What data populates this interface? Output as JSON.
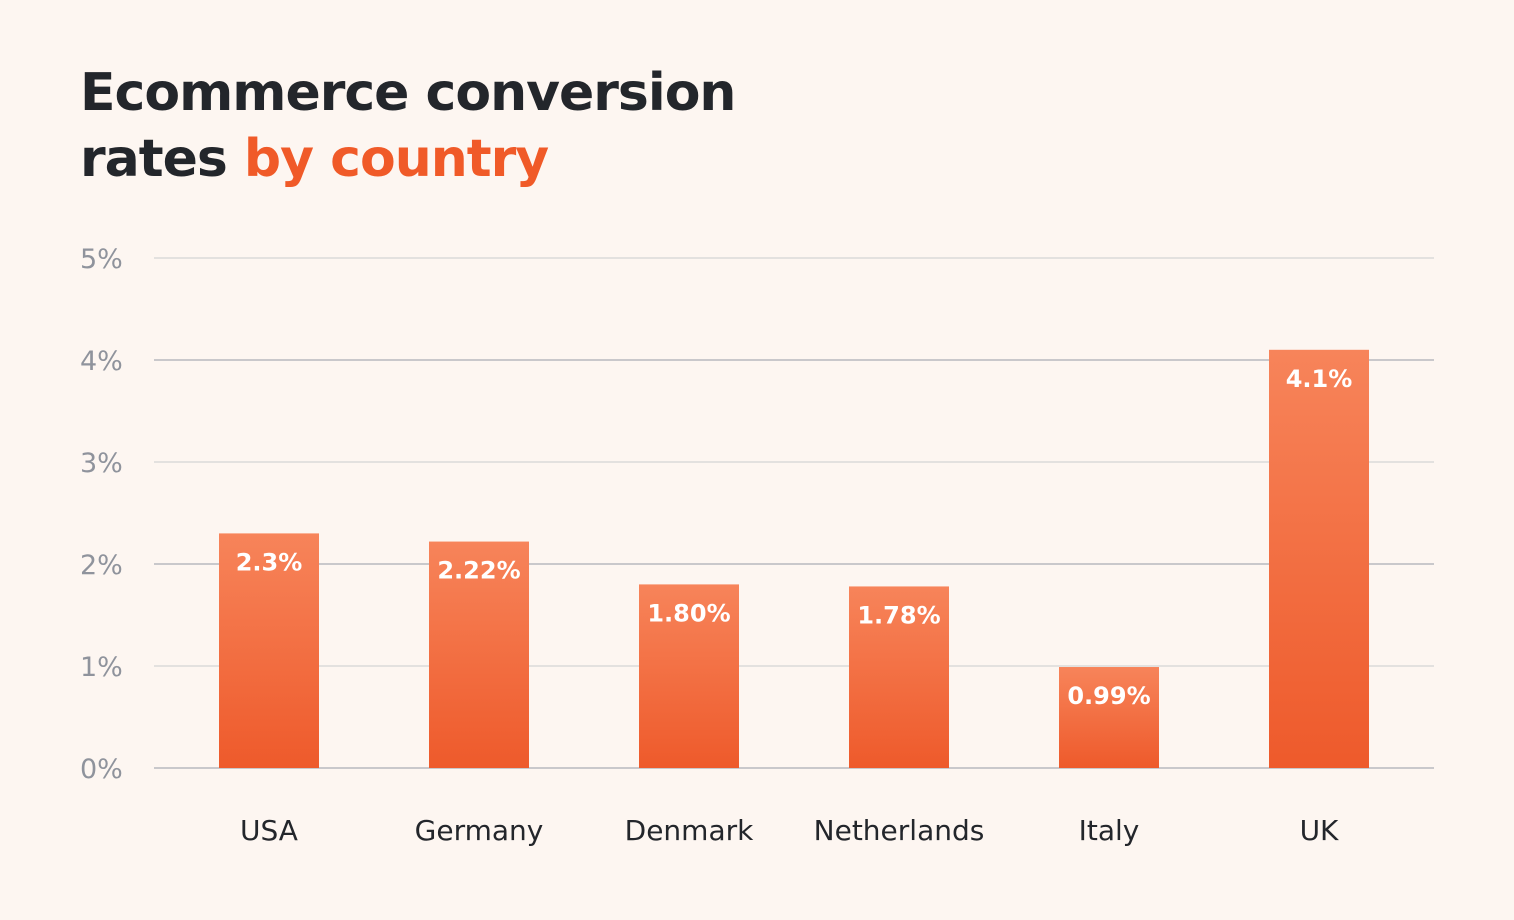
{
  "title": {
    "line1": "Ecommerce conversion",
    "line2_plain": "rates ",
    "line2_accent": "by country"
  },
  "colors": {
    "background": "#fdf6f1",
    "title_text": "#23262b",
    "accent": "#f05a28",
    "bar_top": "#f7845a",
    "bar_bottom": "#ee5a2b",
    "gridline": "#e3e1df",
    "axis_text": "#8f939c"
  },
  "chart_data": {
    "type": "bar",
    "title": "Ecommerce conversion rates by country",
    "xlabel": "",
    "ylabel": "",
    "categories": [
      "USA",
      "Germany",
      "Denmark",
      "Netherlands",
      "Italy",
      "UK"
    ],
    "values": [
      2.3,
      2.22,
      1.8,
      1.78,
      0.99,
      4.1
    ],
    "value_labels": [
      "2.3%",
      "2.22%",
      "1.80%",
      "1.78%",
      "0.99%",
      "4.1%"
    ],
    "ylim": [
      0,
      5
    ],
    "y_ticks": [
      0,
      1,
      2,
      3,
      4,
      5
    ],
    "y_tick_labels": [
      "0%",
      "1%",
      "2%",
      "3%",
      "4%",
      "5%"
    ],
    "grid": true,
    "legend": "none"
  }
}
